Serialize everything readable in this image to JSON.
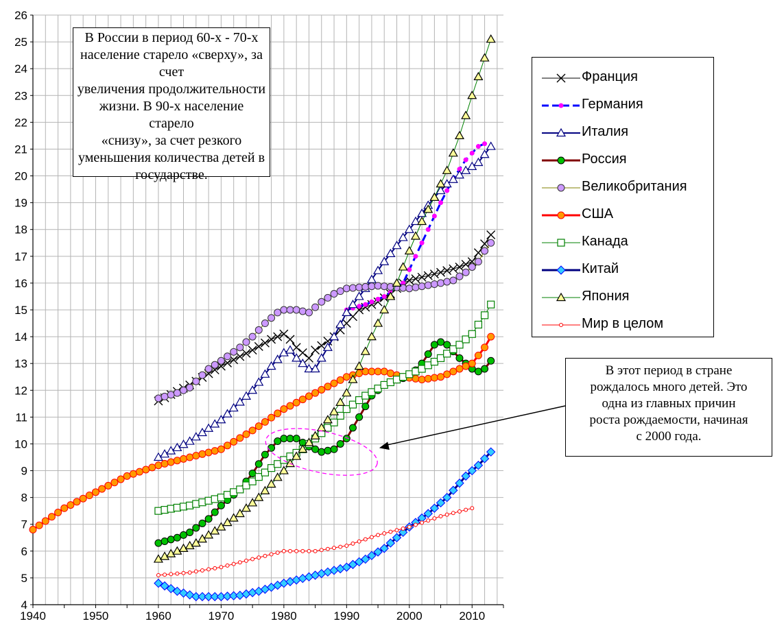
{
  "chart_data": {
    "type": "line",
    "xlim": [
      1940,
      2015
    ],
    "ylim": [
      4,
      26
    ],
    "x_ticks": [
      1940,
      1950,
      1960,
      1970,
      1980,
      1990,
      2000,
      2010
    ],
    "y_ticks": [
      4,
      5,
      6,
      7,
      8,
      9,
      10,
      11,
      12,
      13,
      14,
      15,
      16,
      17,
      18,
      19,
      20,
      21,
      22,
      23,
      24,
      25,
      26
    ],
    "grid": true,
    "legend_position": "right",
    "series": [
      {
        "name": "Франция",
        "color": "#000000",
        "marker": "x",
        "line_width": 1,
        "points": [
          [
            1960,
            11.6
          ],
          [
            1965,
            12.2
          ],
          [
            1970,
            12.9
          ],
          [
            1975,
            13.5
          ],
          [
            1978,
            13.9
          ],
          [
            1980,
            14.1
          ],
          [
            1981,
            13.9
          ],
          [
            1982,
            13.6
          ],
          [
            1984,
            13.2
          ],
          [
            1985,
            13.5
          ],
          [
            1988,
            14.0
          ],
          [
            1990,
            14.5
          ],
          [
            1992,
            15.0
          ],
          [
            1995,
            15.3
          ],
          [
            1997,
            15.6
          ],
          [
            1999,
            16.0
          ],
          [
            2000,
            16.1
          ],
          [
            2005,
            16.4
          ],
          [
            2008,
            16.6
          ],
          [
            2010,
            16.8
          ],
          [
            2013,
            17.8
          ]
        ]
      },
      {
        "name": "Германия",
        "color": "#0000ff",
        "marker": "dot-magenta",
        "line_width": 3,
        "dashed": true,
        "points": [
          [
            1990,
            15.0
          ],
          [
            1993,
            15.2
          ],
          [
            1996,
            15.5
          ],
          [
            1999,
            16.0
          ],
          [
            2001,
            17.0
          ],
          [
            2003,
            18.0
          ],
          [
            2005,
            19.0
          ],
          [
            2007,
            19.9
          ],
          [
            2009,
            20.6
          ],
          [
            2011,
            21.1
          ],
          [
            2012,
            21.2
          ]
        ]
      },
      {
        "name": "Италия",
        "color": "#000080",
        "marker": "triangle-open",
        "line_width": 2,
        "points": [
          [
            1960,
            9.5
          ],
          [
            1965,
            10.1
          ],
          [
            1970,
            10.9
          ],
          [
            1975,
            12.0
          ],
          [
            1978,
            12.9
          ],
          [
            1980,
            13.4
          ],
          [
            1981,
            13.5
          ],
          [
            1982,
            13.2
          ],
          [
            1984,
            12.8
          ],
          [
            1985,
            12.8
          ],
          [
            1988,
            14.0
          ],
          [
            1990,
            14.9
          ],
          [
            1993,
            15.8
          ],
          [
            1996,
            16.8
          ],
          [
            1999,
            17.7
          ],
          [
            2002,
            18.6
          ],
          [
            2004,
            19.2
          ],
          [
            2006,
            19.7
          ],
          [
            2009,
            20.2
          ],
          [
            2011,
            20.5
          ],
          [
            2013,
            21.1
          ]
        ]
      },
      {
        "name": "Россия",
        "color": "#800000",
        "marker": "circle-green",
        "line_width": 3,
        "points": [
          [
            1960,
            6.3
          ],
          [
            1963,
            6.5
          ],
          [
            1965,
            6.7
          ],
          [
            1968,
            7.2
          ],
          [
            1970,
            7.7
          ],
          [
            1973,
            8.3
          ],
          [
            1975,
            8.9
          ],
          [
            1977,
            9.6
          ],
          [
            1979,
            10.1
          ],
          [
            1980,
            10.2
          ],
          [
            1982,
            10.2
          ],
          [
            1984,
            9.9
          ],
          [
            1986,
            9.7
          ],
          [
            1988,
            9.8
          ],
          [
            1990,
            10.2
          ],
          [
            1992,
            11.0
          ],
          [
            1994,
            11.8
          ],
          [
            1996,
            12.2
          ],
          [
            1998,
            12.4
          ],
          [
            2000,
            12.5
          ],
          [
            2002,
            13.0
          ],
          [
            2004,
            13.7
          ],
          [
            2005,
            13.8
          ],
          [
            2006,
            13.7
          ],
          [
            2008,
            13.2
          ],
          [
            2010,
            12.8
          ],
          [
            2011,
            12.7
          ],
          [
            2012,
            12.8
          ],
          [
            2013,
            13.1
          ]
        ]
      },
      {
        "name": "Великобритания",
        "color": "#808000",
        "marker": "circle-violet",
        "line_width": 1,
        "points": [
          [
            1960,
            11.7
          ],
          [
            1963,
            11.9
          ],
          [
            1965,
            12.1
          ],
          [
            1968,
            12.8
          ],
          [
            1970,
            13.1
          ],
          [
            1973,
            13.6
          ],
          [
            1975,
            14.0
          ],
          [
            1977,
            14.5
          ],
          [
            1979,
            14.9
          ],
          [
            1980,
            15.0
          ],
          [
            1982,
            15.0
          ],
          [
            1984,
            14.9
          ],
          [
            1986,
            15.3
          ],
          [
            1988,
            15.6
          ],
          [
            1990,
            15.8
          ],
          [
            1995,
            15.9
          ],
          [
            2000,
            15.8
          ],
          [
            2005,
            16.0
          ],
          [
            2007,
            16.1
          ],
          [
            2009,
            16.4
          ],
          [
            2011,
            16.8
          ],
          [
            2012,
            17.2
          ],
          [
            2013,
            17.5
          ]
        ]
      },
      {
        "name": "США",
        "color": "#ff0000",
        "marker": "circle-orange",
        "line_width": 3,
        "points": [
          [
            1940,
            6.8
          ],
          [
            1945,
            7.6
          ],
          [
            1950,
            8.2
          ],
          [
            1955,
            8.8
          ],
          [
            1960,
            9.2
          ],
          [
            1965,
            9.5
          ],
          [
            1970,
            9.8
          ],
          [
            1975,
            10.5
          ],
          [
            1980,
            11.3
          ],
          [
            1985,
            11.9
          ],
          [
            1990,
            12.5
          ],
          [
            1993,
            12.7
          ],
          [
            1996,
            12.7
          ],
          [
            1999,
            12.5
          ],
          [
            2002,
            12.4
          ],
          [
            2005,
            12.5
          ],
          [
            2008,
            12.8
          ],
          [
            2010,
            13.0
          ],
          [
            2012,
            13.6
          ],
          [
            2013,
            14.0
          ]
        ]
      },
      {
        "name": "Канада",
        "color": "#008000",
        "marker": "square-open",
        "line_width": 1,
        "points": [
          [
            1960,
            7.5
          ],
          [
            1965,
            7.7
          ],
          [
            1970,
            8.0
          ],
          [
            1973,
            8.3
          ],
          [
            1975,
            8.6
          ],
          [
            1978,
            9.1
          ],
          [
            1980,
            9.4
          ],
          [
            1983,
            9.8
          ],
          [
            1985,
            10.2
          ],
          [
            1988,
            10.8
          ],
          [
            1990,
            11.3
          ],
          [
            1993,
            11.8
          ],
          [
            1996,
            12.2
          ],
          [
            1999,
            12.5
          ],
          [
            2002,
            12.8
          ],
          [
            2005,
            13.2
          ],
          [
            2008,
            13.7
          ],
          [
            2010,
            14.1
          ],
          [
            2012,
            14.8
          ],
          [
            2013,
            15.2
          ]
        ]
      },
      {
        "name": "Китай",
        "color": "#000080",
        "marker": "diamond-cyan",
        "line_width": 3,
        "points": [
          [
            1960,
            4.8
          ],
          [
            1963,
            4.5
          ],
          [
            1966,
            4.3
          ],
          [
            1970,
            4.3
          ],
          [
            1973,
            4.35
          ],
          [
            1976,
            4.5
          ],
          [
            1980,
            4.8
          ],
          [
            1985,
            5.1
          ],
          [
            1990,
            5.4
          ],
          [
            1993,
            5.7
          ],
          [
            1996,
            6.1
          ],
          [
            2000,
            6.9
          ],
          [
            2003,
            7.4
          ],
          [
            2006,
            8.0
          ],
          [
            2009,
            8.8
          ],
          [
            2011,
            9.2
          ],
          [
            2013,
            9.7
          ]
        ]
      },
      {
        "name": "Япония",
        "color": "#008000",
        "marker": "triangle-yellow",
        "line_width": 1,
        "points": [
          [
            1960,
            5.7
          ],
          [
            1963,
            6.0
          ],
          [
            1966,
            6.3
          ],
          [
            1970,
            6.9
          ],
          [
            1973,
            7.4
          ],
          [
            1976,
            8.0
          ],
          [
            1980,
            9.0
          ],
          [
            1983,
            9.8
          ],
          [
            1985,
            10.3
          ],
          [
            1988,
            11.2
          ],
          [
            1990,
            11.9
          ],
          [
            1992,
            12.9
          ],
          [
            1994,
            14.0
          ],
          [
            1996,
            15.0
          ],
          [
            1998,
            16.0
          ],
          [
            2000,
            17.2
          ],
          [
            2002,
            18.3
          ],
          [
            2004,
            19.2
          ],
          [
            2006,
            20.2
          ],
          [
            2008,
            21.5
          ],
          [
            2010,
            23.0
          ],
          [
            2012,
            24.4
          ],
          [
            2013,
            25.1
          ]
        ]
      },
      {
        "name": "Мир в целом",
        "color": "#ff0000",
        "marker": "circle-small",
        "line_width": 1,
        "points": [
          [
            1960,
            5.1
          ],
          [
            1965,
            5.2
          ],
          [
            1970,
            5.4
          ],
          [
            1975,
            5.7
          ],
          [
            1980,
            6.0
          ],
          [
            1985,
            6.0
          ],
          [
            1990,
            6.2
          ],
          [
            1995,
            6.6
          ],
          [
            2000,
            6.9
          ],
          [
            2005,
            7.3
          ],
          [
            2010,
            7.6
          ]
        ]
      }
    ]
  },
  "annotations": {
    "main_text": "В России в период 60-х - 70-х\nнаселение старело «сверху», за счет\nувеличения продолжительности\nжизни. В 90-х население старело\n«снизу», за счет резкого\nуменьшения количества детей в\nгосударстве.",
    "side_text": "В этот период в стране\nрождалось много детей. Это\nодна из главных причин\nроста рождаемости, начиная\nс 2000 года."
  }
}
